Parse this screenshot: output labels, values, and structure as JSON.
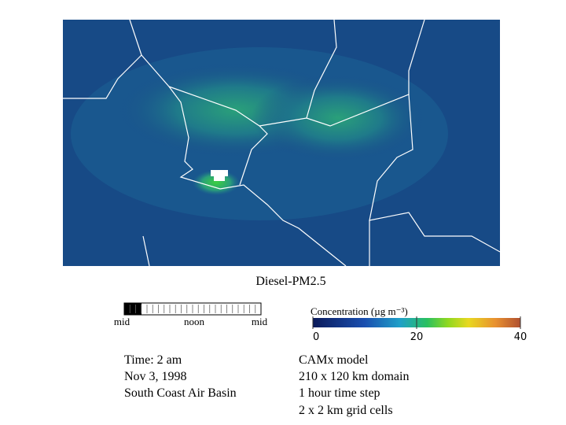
{
  "title": "Diesel-PM2.5",
  "timeline": {
    "labels": [
      "mid",
      "noon",
      "mid"
    ]
  },
  "colorbar": {
    "label": "Concentration (µg m⁻³)",
    "lim": [
      0,
      40
    ],
    "ticks": [
      0,
      20,
      40
    ]
  },
  "left_info": {
    "lines": [
      "Time: 2 am",
      "Nov 3, 1998",
      "South Coast Air Basin"
    ]
  },
  "right_info": {
    "lines": [
      "CAMx model",
      "210 x 120 km domain",
      "1 hour time step",
      "2 x 2 km grid cells"
    ]
  }
}
